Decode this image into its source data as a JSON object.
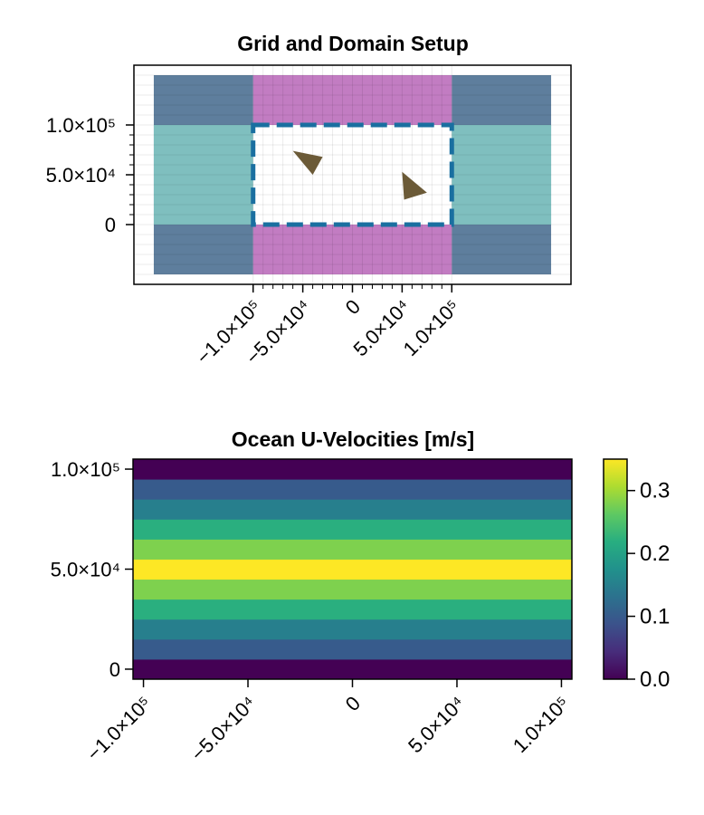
{
  "chart_data": [
    {
      "type": "scatter",
      "title": "Grid and Domain Setup",
      "xlabel": "",
      "ylabel": "",
      "xlim": [
        -220000,
        220000
      ],
      "ylim": [
        -60000,
        160000
      ],
      "x_ticks": [
        {
          "value": -100000,
          "label": "−1.0×10⁵"
        },
        {
          "value": -50000,
          "label": "−5.0×10⁴"
        },
        {
          "value": 0,
          "label": "0"
        },
        {
          "value": 50000,
          "label": "5.0×10⁴"
        },
        {
          "value": 100000,
          "label": "1.0×10⁵"
        }
      ],
      "y_ticks": [
        {
          "value": 0,
          "label": "0"
        },
        {
          "value": 50000,
          "label": "5.0×10⁴"
        },
        {
          "value": 100000,
          "label": "1.0×10⁵"
        }
      ],
      "grid": true,
      "regions": [
        {
          "x": [
            -200000,
            -100000
          ],
          "y": [
            -50000,
            150000
          ],
          "color": "#5e7e9d"
        },
        {
          "x": [
            100000,
            200000
          ],
          "y": [
            -50000,
            150000
          ],
          "color": "#5e7e9d"
        },
        {
          "x": [
            -100000,
            100000
          ],
          "y": [
            -50000,
            150000
          ],
          "color": "#c27cc2"
        },
        {
          "x": [
            -200000,
            200000
          ],
          "y": [
            0,
            100000
          ],
          "color": "#7fbfbf"
        },
        {
          "x": [
            -100000,
            100000
          ],
          "y": [
            0,
            100000
          ],
          "color": "#ffffff"
        }
      ],
      "domain_outline": {
        "x": [
          -100000,
          100000
        ],
        "y": [
          0,
          100000
        ],
        "color": "#1a6fa0",
        "style": "dashed"
      },
      "floes": [
        {
          "color": "#6b5a37",
          "points": [
            [
              -60000,
              74000
            ],
            [
              -30000,
              68000
            ],
            [
              -40000,
              50000
            ]
          ]
        },
        {
          "color": "#6b5a37",
          "points": [
            [
              50000,
              53000
            ],
            [
              75000,
              32000
            ],
            [
              52000,
              25000
            ]
          ]
        }
      ]
    },
    {
      "type": "heatmap",
      "title": "Ocean U-Velocities [m/s]",
      "xlabel": "",
      "ylabel": "",
      "xlim": [
        -105000,
        105000
      ],
      "ylim": [
        -5000,
        105000
      ],
      "x_ticks": [
        {
          "value": -100000,
          "label": "−1.0×10⁵"
        },
        {
          "value": -50000,
          "label": "−5.0×10⁴"
        },
        {
          "value": 0,
          "label": "0"
        },
        {
          "value": 50000,
          "label": "5.0×10⁴"
        },
        {
          "value": 100000,
          "label": "1.0×10⁵"
        }
      ],
      "y_ticks": [
        {
          "value": 0,
          "label": "0"
        },
        {
          "value": 50000,
          "label": "5.0×10⁴"
        },
        {
          "value": 100000,
          "label": "1.0×10⁵"
        }
      ],
      "rows_y": [
        0,
        10000,
        20000,
        30000,
        40000,
        50000,
        60000,
        70000,
        80000,
        90000,
        100000
      ],
      "row_height": 10000,
      "values": [
        0.0,
        0.1,
        0.15,
        0.22,
        0.28,
        0.35,
        0.28,
        0.22,
        0.15,
        0.1,
        0.0
      ],
      "colorbar": {
        "range": [
          0.0,
          0.35
        ],
        "ticks": [
          {
            "value": 0.0,
            "label": "0.0"
          },
          {
            "value": 0.1,
            "label": "0.1"
          },
          {
            "value": 0.2,
            "label": "0.2"
          },
          {
            "value": 0.3,
            "label": "0.3"
          }
        ],
        "colormap": "viridis"
      }
    }
  ]
}
